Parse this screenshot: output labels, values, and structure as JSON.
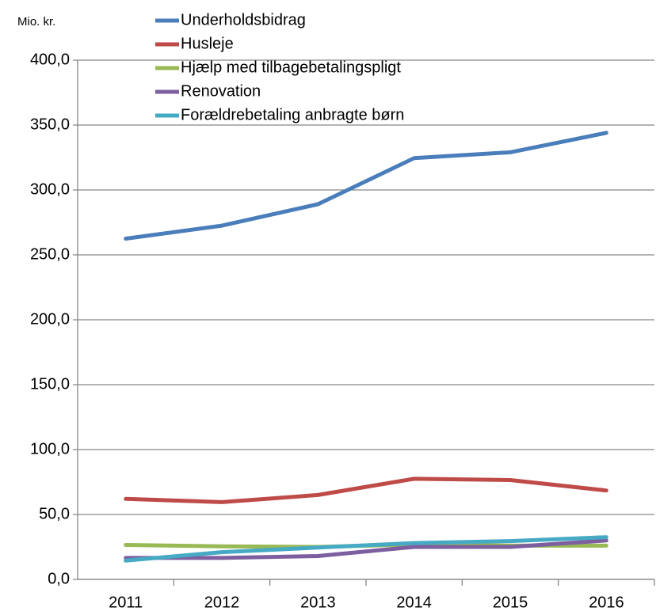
{
  "chart_data": {
    "type": "line",
    "ylabel": "Mio. kr.",
    "categories": [
      "2011",
      "2012",
      "2013",
      "2014",
      "2015",
      "2016"
    ],
    "series": [
      {
        "name": "Underholdsbidrag",
        "color": "#4a7ebb",
        "values": [
          262.5,
          272.5,
          289,
          324.5,
          329,
          344
        ]
      },
      {
        "name": "Husleje",
        "color": "#be4b48",
        "values": [
          62,
          59.5,
          65,
          77.5,
          76.5,
          68.5
        ]
      },
      {
        "name": "Hjælp med tilbagebetalingspligt",
        "color": "#98b954",
        "values": [
          26.5,
          25.5,
          25,
          27,
          26,
          26
        ]
      },
      {
        "name": "Renovation",
        "color": "#7d5fa0",
        "values": [
          16.5,
          16.5,
          18,
          25,
          25,
          30
        ]
      },
      {
        "name": "Forældrebetaling anbragte børn",
        "color": "#46aac5",
        "values": [
          14.5,
          21,
          24.5,
          28,
          29.5,
          32.5
        ]
      }
    ],
    "ylim": [
      0,
      400
    ],
    "yticks": [
      {
        "value": 0,
        "label": "0,0"
      },
      {
        "value": 50,
        "label": "50,0"
      },
      {
        "value": 100,
        "label": "100,0"
      },
      {
        "value": 150,
        "label": "150,0"
      },
      {
        "value": 200,
        "label": "200,0"
      },
      {
        "value": 250,
        "label": "250,0"
      },
      {
        "value": 300,
        "label": "300,0"
      },
      {
        "value": 350,
        "label": "350,0"
      },
      {
        "value": 400,
        "label": "400,0"
      }
    ],
    "grid": true,
    "legend": "top"
  }
}
